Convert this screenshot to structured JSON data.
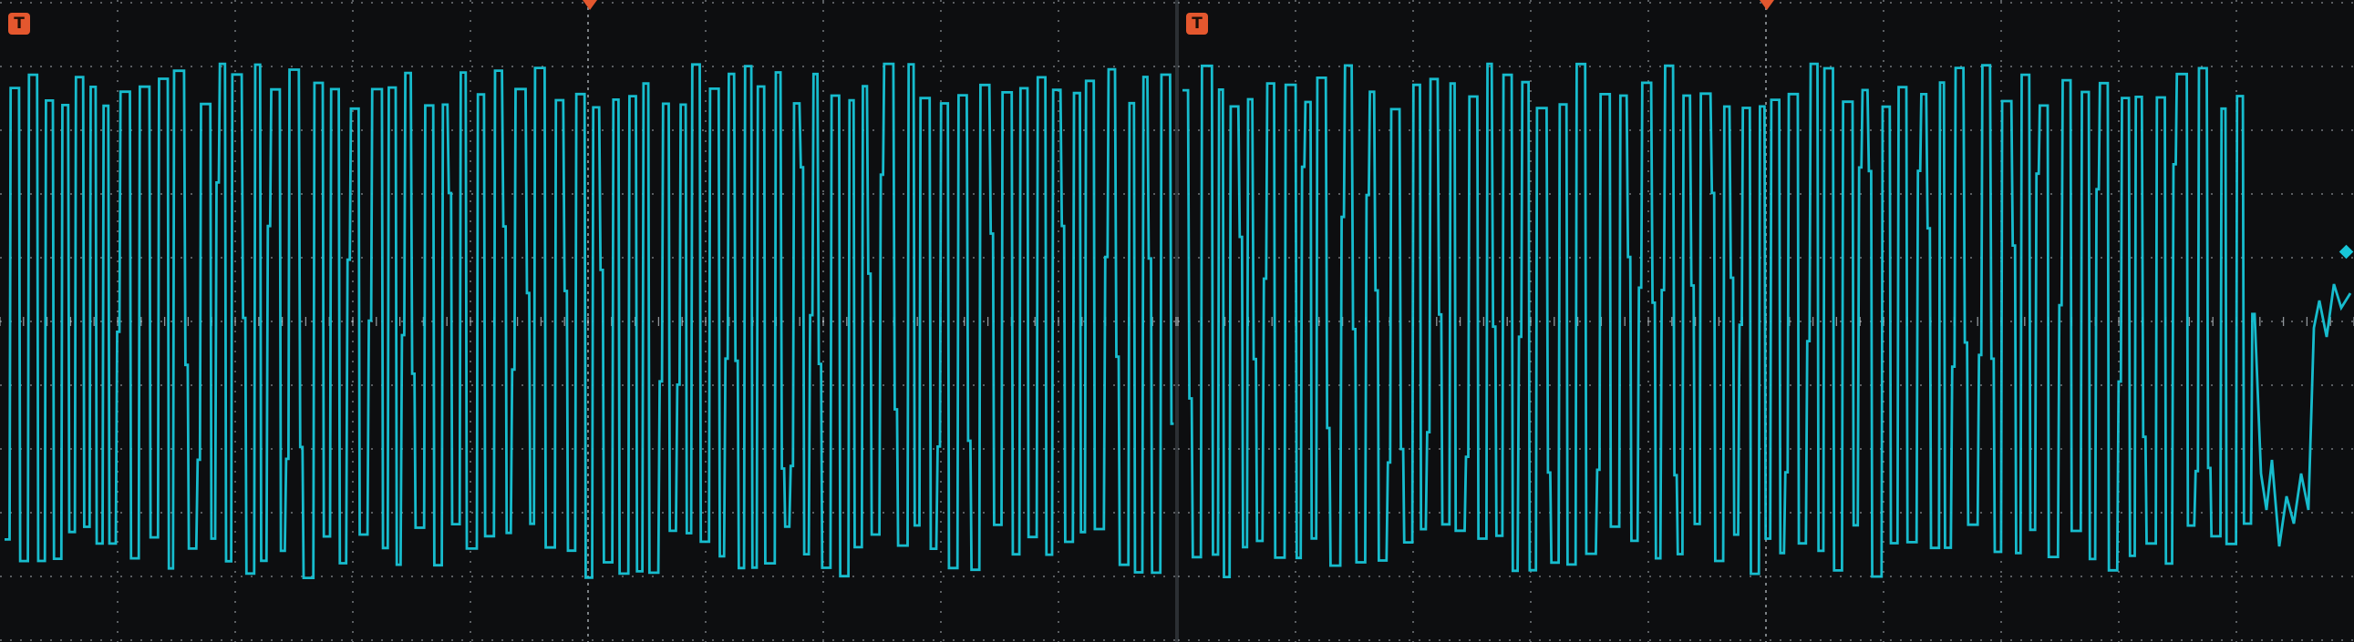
{
  "scope": {
    "trigger_marker_label": "T",
    "trace_color": "#18c6d8",
    "trigger_color": "#e4572e",
    "grid_color": "#d7e0e6",
    "background_color": "#0d0e10",
    "icons": [
      "trigger-marker-icon",
      "trigger-position-icon",
      "trigger-level-icon"
    ]
  }
}
